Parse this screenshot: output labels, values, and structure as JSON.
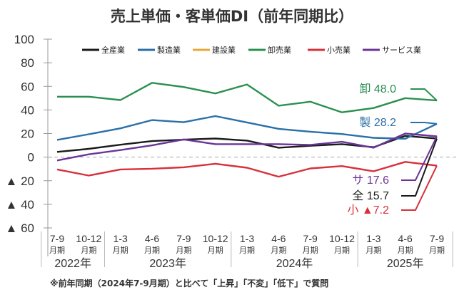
{
  "chart_data": {
    "type": "line",
    "title": "売上単価・客単価DI（前年同期比）",
    "xlabel": "",
    "ylabel": "",
    "ylim": [
      -60,
      100
    ],
    "yticks": [
      100,
      80,
      60,
      40,
      20,
      0,
      -20,
      -40,
      -60
    ],
    "ytick_labels": [
      "100",
      "80",
      "60",
      "40",
      "20",
      "0",
      "▲ 20",
      "▲ 40",
      "▲ 60"
    ],
    "categories": [
      "7-9",
      "10-12",
      "1-3",
      "4-6",
      "7-9",
      "10-12",
      "1-3",
      "4-6",
      "7-9",
      "10-12",
      "1-3",
      "4-6",
      "7-9"
    ],
    "category_suffix": "月期",
    "year_groups": [
      {
        "label": "2022年",
        "count": 2
      },
      {
        "label": "2023年",
        "count": 4
      },
      {
        "label": "2024年",
        "count": 4
      },
      {
        "label": "2025年",
        "count": 3
      }
    ],
    "zero_line": "dashed",
    "legend_position": "top",
    "series": [
      {
        "name": "全産業",
        "color": "#1a1a1a",
        "end_label": "全 15.7",
        "values": [
          4.4,
          7.0,
          10.5,
          13.6,
          14.8,
          15.8,
          14.0,
          8.0,
          9.6,
          11.0,
          8.4,
          18.0,
          15.7
        ]
      },
      {
        "name": "製造業",
        "color": "#2a6fa8",
        "end_label": "製 28.2",
        "values": [
          14.6,
          19.4,
          24.4,
          31.4,
          29.6,
          34.8,
          29.4,
          24.0,
          21.6,
          19.6,
          16.4,
          15.6,
          28.2
        ]
      },
      {
        "name": "建設業",
        "color": "#e8a838",
        "end_label": "",
        "values": []
      },
      {
        "name": "卸売業",
        "color": "#2a9050",
        "end_label": "卸 48.0",
        "values": [
          51.2,
          51.2,
          48.4,
          63.0,
          59.4,
          54.0,
          61.6,
          43.6,
          47.0,
          38.0,
          41.6,
          50.0,
          48.0
        ]
      },
      {
        "name": "小売業",
        "color": "#d8303a",
        "end_label": "小 ▲7.2",
        "values": [
          -10.4,
          -15.6,
          -10.4,
          -9.8,
          -8.6,
          -5.6,
          -9.0,
          -16.6,
          -9.6,
          -7.6,
          -12.0,
          -4.0,
          -7.2
        ]
      },
      {
        "name": "サービス業",
        "color": "#6b3598",
        "end_label": "サ 17.6",
        "values": [
          -2.8,
          2.4,
          6.0,
          10.0,
          15.0,
          11.0,
          11.0,
          11.0,
          10.4,
          13.0,
          8.0,
          20.0,
          17.6
        ]
      }
    ],
    "footnote": "※前年同期（2024年7-9月期）と比べて「上昇」「不変」「低下」で質問"
  }
}
